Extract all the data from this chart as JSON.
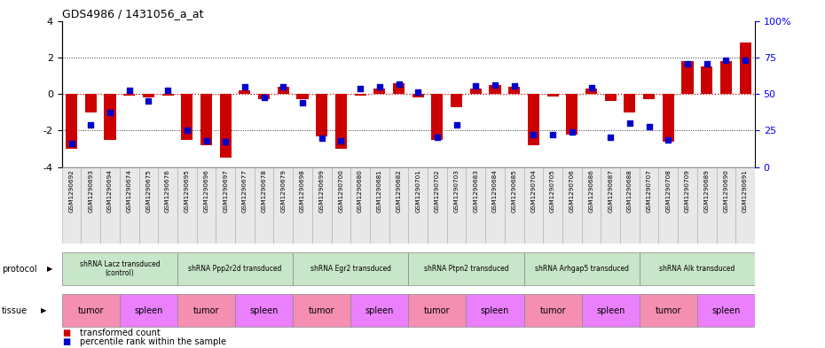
{
  "title": "GDS4986 / 1431056_a_at",
  "samples": [
    "GSM1290692",
    "GSM1290693",
    "GSM1290694",
    "GSM1290674",
    "GSM1290675",
    "GSM1290676",
    "GSM1290695",
    "GSM1290696",
    "GSM1290697",
    "GSM1290677",
    "GSM1290678",
    "GSM1290679",
    "GSM1290698",
    "GSM1290699",
    "GSM1290700",
    "GSM1290680",
    "GSM1290681",
    "GSM1290682",
    "GSM1290701",
    "GSM1290702",
    "GSM1290703",
    "GSM1290683",
    "GSM1290684",
    "GSM1290685",
    "GSM1290704",
    "GSM1290705",
    "GSM1290706",
    "GSM1290686",
    "GSM1290687",
    "GSM1290688",
    "GSM1290707",
    "GSM1290708",
    "GSM1290709",
    "GSM1290689",
    "GSM1290690",
    "GSM1290691"
  ],
  "red_values": [
    -3.0,
    -1.0,
    -2.5,
    -0.1,
    -0.2,
    -0.1,
    -2.5,
    -2.8,
    -3.5,
    0.2,
    -0.3,
    0.4,
    -0.3,
    -2.3,
    -3.0,
    -0.1,
    0.3,
    0.6,
    -0.2,
    -2.5,
    -0.7,
    0.3,
    0.5,
    0.4,
    -2.8,
    -0.15,
    -2.2,
    0.3,
    -0.4,
    -1.0,
    -0.3,
    -2.6,
    1.8,
    1.5,
    1.8,
    2.8
  ],
  "blue_values": [
    -2.7,
    -1.7,
    -1.0,
    0.2,
    -0.4,
    0.2,
    -2.0,
    -2.55,
    -2.6,
    0.4,
    -0.2,
    0.4,
    -0.5,
    -2.4,
    -2.55,
    0.3,
    0.4,
    0.55,
    0.1,
    -2.35,
    -1.7,
    0.45,
    0.5,
    0.45,
    -2.2,
    -2.2,
    -2.1,
    0.35,
    -2.35,
    -1.6,
    -1.8,
    -2.5,
    1.65,
    1.65,
    1.85,
    1.85
  ],
  "protocols": [
    {
      "label": "shRNA Lacz transduced\n(control)",
      "start": 0,
      "end": 5,
      "color": "#c8e6c9"
    },
    {
      "label": "shRNA Ppp2r2d transduced",
      "start": 6,
      "end": 11,
      "color": "#c8e6c9"
    },
    {
      "label": "shRNA Egr2 transduced",
      "start": 12,
      "end": 17,
      "color": "#c8e6c9"
    },
    {
      "label": "shRNA Ptpn2 transduced",
      "start": 18,
      "end": 23,
      "color": "#c8e6c9"
    },
    {
      "label": "shRNA Arhgap5 transduced",
      "start": 24,
      "end": 29,
      "color": "#c8e6c9"
    },
    {
      "label": "shRNA Alk transduced",
      "start": 30,
      "end": 35,
      "color": "#c8e6c9"
    }
  ],
  "tissues": [
    {
      "label": "tumor",
      "start": 0,
      "end": 2,
      "color": "#f48fb1"
    },
    {
      "label": "spleen",
      "start": 3,
      "end": 5,
      "color": "#ea80fc"
    },
    {
      "label": "tumor",
      "start": 6,
      "end": 8,
      "color": "#f48fb1"
    },
    {
      "label": "spleen",
      "start": 9,
      "end": 11,
      "color": "#ea80fc"
    },
    {
      "label": "tumor",
      "start": 12,
      "end": 14,
      "color": "#f48fb1"
    },
    {
      "label": "spleen",
      "start": 15,
      "end": 17,
      "color": "#ea80fc"
    },
    {
      "label": "tumor",
      "start": 18,
      "end": 20,
      "color": "#f48fb1"
    },
    {
      "label": "spleen",
      "start": 21,
      "end": 23,
      "color": "#ea80fc"
    },
    {
      "label": "tumor",
      "start": 24,
      "end": 26,
      "color": "#f48fb1"
    },
    {
      "label": "spleen",
      "start": 27,
      "end": 29,
      "color": "#ea80fc"
    },
    {
      "label": "tumor",
      "start": 30,
      "end": 32,
      "color": "#f48fb1"
    },
    {
      "label": "spleen",
      "start": 33,
      "end": 35,
      "color": "#ea80fc"
    }
  ],
  "ylim": [
    -4,
    4
  ],
  "yticks": [
    -4,
    -2,
    0,
    2,
    4
  ],
  "red_color": "#cc0000",
  "blue_color": "#0000cc",
  "hline_color": "#cc0000",
  "dotted_color": "#333333",
  "bar_width": 0.6,
  "label_bg": "#e8e8e8"
}
